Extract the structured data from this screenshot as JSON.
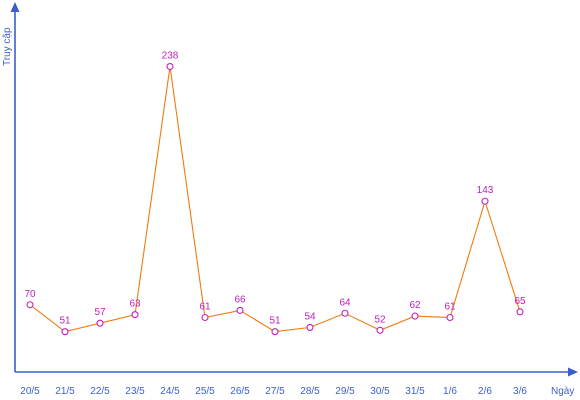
{
  "chart_data": {
    "type": "line",
    "title": "",
    "xlabel": "Ngày",
    "ylabel": "Truy cập",
    "categories": [
      "20/5",
      "21/5",
      "22/5",
      "23/5",
      "24/5",
      "25/5",
      "26/5",
      "27/5",
      "28/5",
      "29/5",
      "30/5",
      "31/5",
      "1/6",
      "2/6",
      "3/6"
    ],
    "values": [
      70,
      51,
      57,
      63,
      238,
      61,
      66,
      51,
      54,
      64,
      52,
      62,
      61,
      143,
      65
    ],
    "ylim": [
      0,
      280
    ],
    "grid": false,
    "legend": "none",
    "colors": {
      "axis": "#3a5fcd",
      "line": "#f07b10",
      "marker": "#c020c0",
      "data_label": "#c020c0"
    }
  }
}
